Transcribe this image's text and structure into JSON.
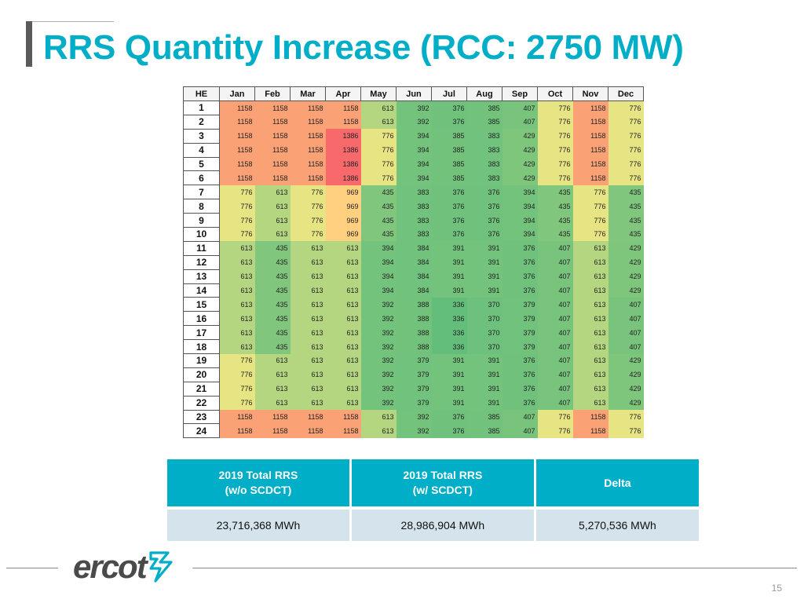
{
  "slide": {
    "title": "RRS Quantity Increase (RCC: 2750 MW)",
    "page_number": "15",
    "logo_text": "ercot"
  },
  "grid": {
    "corner_label": "HE",
    "months": [
      "Jan",
      "Feb",
      "Mar",
      "Apr",
      "May",
      "Jun",
      "Jul",
      "Aug",
      "Sep",
      "Oct",
      "Nov",
      "Dec"
    ],
    "rows": [
      {
        "he": "1",
        "values": [
          1158,
          1158,
          1158,
          1158,
          613,
          392,
          376,
          385,
          407,
          776,
          1158,
          776
        ]
      },
      {
        "he": "2",
        "values": [
          1158,
          1158,
          1158,
          1158,
          613,
          392,
          376,
          385,
          407,
          776,
          1158,
          776
        ]
      },
      {
        "he": "3",
        "values": [
          1158,
          1158,
          1158,
          1386,
          776,
          394,
          385,
          383,
          429,
          776,
          1158,
          776
        ]
      },
      {
        "he": "4",
        "values": [
          1158,
          1158,
          1158,
          1386,
          776,
          394,
          385,
          383,
          429,
          776,
          1158,
          776
        ]
      },
      {
        "he": "5",
        "values": [
          1158,
          1158,
          1158,
          1386,
          776,
          394,
          385,
          383,
          429,
          776,
          1158,
          776
        ]
      },
      {
        "he": "6",
        "values": [
          1158,
          1158,
          1158,
          1386,
          776,
          394,
          385,
          383,
          429,
          776,
          1158,
          776
        ]
      },
      {
        "he": "7",
        "values": [
          776,
          613,
          776,
          969,
          435,
          383,
          376,
          376,
          394,
          435,
          776,
          435
        ]
      },
      {
        "he": "8",
        "values": [
          776,
          613,
          776,
          969,
          435,
          383,
          376,
          376,
          394,
          435,
          776,
          435
        ]
      },
      {
        "he": "9",
        "values": [
          776,
          613,
          776,
          969,
          435,
          383,
          376,
          376,
          394,
          435,
          776,
          435
        ]
      },
      {
        "he": "10",
        "values": [
          776,
          613,
          776,
          969,
          435,
          383,
          376,
          376,
          394,
          435,
          776,
          435
        ]
      },
      {
        "he": "11",
        "values": [
          613,
          435,
          613,
          613,
          394,
          384,
          391,
          391,
          376,
          407,
          613,
          429
        ]
      },
      {
        "he": "12",
        "values": [
          613,
          435,
          613,
          613,
          394,
          384,
          391,
          391,
          376,
          407,
          613,
          429
        ]
      },
      {
        "he": "13",
        "values": [
          613,
          435,
          613,
          613,
          394,
          384,
          391,
          391,
          376,
          407,
          613,
          429
        ]
      },
      {
        "he": "14",
        "values": [
          613,
          435,
          613,
          613,
          394,
          384,
          391,
          391,
          376,
          407,
          613,
          429
        ]
      },
      {
        "he": "15",
        "values": [
          613,
          435,
          613,
          613,
          392,
          388,
          336,
          370,
          379,
          407,
          613,
          407
        ]
      },
      {
        "he": "16",
        "values": [
          613,
          435,
          613,
          613,
          392,
          388,
          336,
          370,
          379,
          407,
          613,
          407
        ]
      },
      {
        "he": "17",
        "values": [
          613,
          435,
          613,
          613,
          392,
          388,
          336,
          370,
          379,
          407,
          613,
          407
        ]
      },
      {
        "he": "18",
        "values": [
          613,
          435,
          613,
          613,
          392,
          388,
          336,
          370,
          379,
          407,
          613,
          407
        ]
      },
      {
        "he": "19",
        "values": [
          776,
          613,
          613,
          613,
          392,
          379,
          391,
          391,
          376,
          407,
          613,
          429
        ]
      },
      {
        "he": "20",
        "values": [
          776,
          613,
          613,
          613,
          392,
          379,
          391,
          391,
          376,
          407,
          613,
          429
        ]
      },
      {
        "he": "21",
        "values": [
          776,
          613,
          613,
          613,
          392,
          379,
          391,
          391,
          376,
          407,
          613,
          429
        ]
      },
      {
        "he": "22",
        "values": [
          776,
          613,
          613,
          613,
          392,
          379,
          391,
          391,
          376,
          407,
          613,
          429
        ]
      },
      {
        "he": "23",
        "values": [
          1158,
          1158,
          1158,
          1158,
          613,
          392,
          376,
          385,
          407,
          776,
          1158,
          776
        ]
      },
      {
        "he": "24",
        "values": [
          1158,
          1158,
          1158,
          1158,
          613,
          392,
          376,
          385,
          407,
          776,
          1158,
          776
        ]
      }
    ],
    "color_scale": {
      "min": 336,
      "max": 1386,
      "low": "#63be7b",
      "mid": "#ffeb84",
      "high": "#f8696b"
    }
  },
  "summary": {
    "headers": [
      [
        "2019 Total RRS",
        "(w/o SCDCT)"
      ],
      [
        "2019 Total RRS",
        "(w/ SCDCT)"
      ],
      [
        "Delta"
      ]
    ],
    "values": [
      "23,716,368 MWh",
      "28,986,904 MWh",
      "5,270,536 MWh"
    ]
  },
  "colors": {
    "accent": "#00aec7",
    "summary_value_bg": "#d5e4ec",
    "logo_gray": "#4a4a4a"
  }
}
